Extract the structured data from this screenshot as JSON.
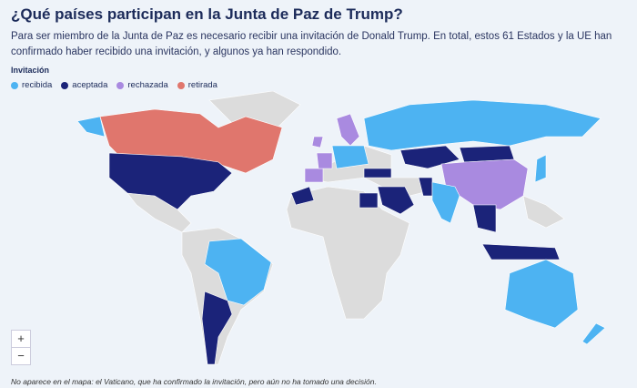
{
  "header": {
    "title": "¿Qué países participan en la Junta de Paz de Trump?",
    "subtitle": "Para ser miembro de la Junta de Paz es necesario recibir una invitación de Donald Trump. En total, estos 61 Estados y la UE han confirmado haber recibido una invitación, y algunos ya han respondido."
  },
  "legend": {
    "title": "Invitación",
    "items": [
      {
        "label": "recibida",
        "color": "#4db3f2"
      },
      {
        "label": "aceptada",
        "color": "#1b2379"
      },
      {
        "label": "rechazada",
        "color": "#a98ae0"
      },
      {
        "label": "retirada",
        "color": "#e0766d"
      }
    ]
  },
  "zoom": {
    "in": "+",
    "out": "−"
  },
  "footer": {
    "note": "No aparece en el mapa: el Vaticano, que ha confirmado la invitación, pero aún no ha tomado una decisión."
  }
}
